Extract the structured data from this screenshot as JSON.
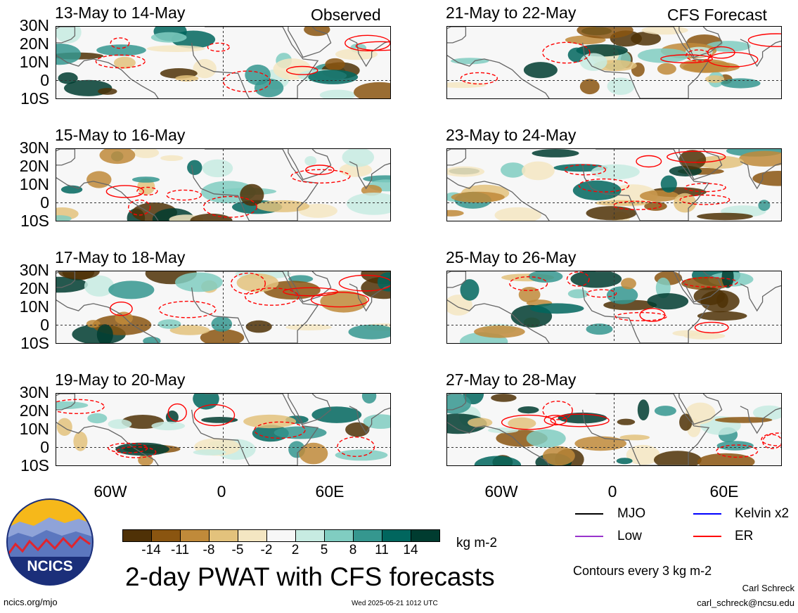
{
  "panels": [
    {
      "title": "13-May to 14-May",
      "tag": "Observed"
    },
    {
      "title": "21-May to 22-May",
      "tag": "CFS Forecast"
    },
    {
      "title": "15-May to 16-May",
      "tag": ""
    },
    {
      "title": "23-May to 24-May",
      "tag": ""
    },
    {
      "title": "17-May to 18-May",
      "tag": ""
    },
    {
      "title": "25-May to 26-May",
      "tag": ""
    },
    {
      "title": "19-May to 20-May",
      "tag": ""
    },
    {
      "title": "27-May to 28-May",
      "tag": ""
    }
  ],
  "lat_labels": [
    "30N",
    "20N",
    "10N",
    "0",
    "10S"
  ],
  "lon_labels": [
    "60W",
    "0",
    "60E"
  ],
  "colorbar": {
    "ticks": [
      "-14",
      "-11",
      "-8",
      "-5",
      "-2",
      "2",
      "5",
      "8",
      "11",
      "14"
    ],
    "unit": "kg m-2",
    "colors": [
      "#4f3106",
      "#8a5510",
      "#c08a3a",
      "#e3c27c",
      "#f4e6c2",
      "#f7f7f7",
      "#c7ebe2",
      "#80cdc1",
      "#35978f",
      "#01665e",
      "#003c30"
    ]
  },
  "legend": {
    "items": [
      {
        "label": "MJO",
        "color": "#000000"
      },
      {
        "label": "Kelvin x2",
        "color": "#0000ff"
      },
      {
        "label": "Low",
        "color": "#9933cc"
      },
      {
        "label": "ER",
        "color": "#ff0000"
      }
    ],
    "note": "Contours every 3 kg m-2"
  },
  "title": "2-day PWAT with CFS forecasts",
  "logo_text": "NCICS",
  "footer": {
    "url": "ncics.org/mjo",
    "timestamp": "Wed 2025-05-21 1012 UTC",
    "author": "Carl Schreck",
    "email": "carl_schreck@ncsu.edu"
  }
}
